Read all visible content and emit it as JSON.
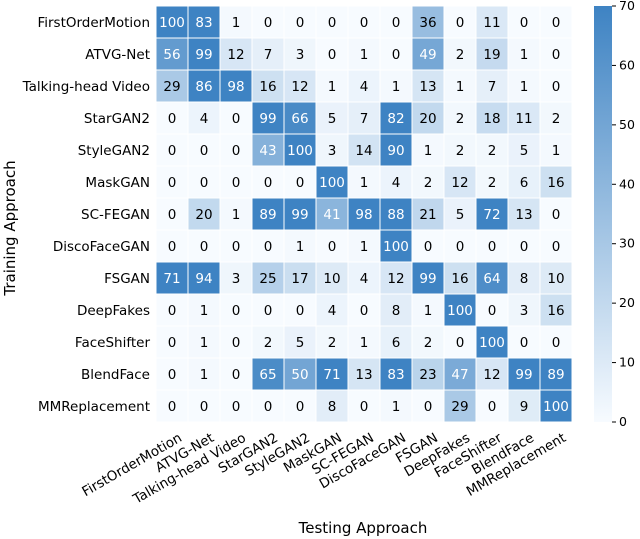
{
  "chart_data": {
    "type": "heatmap",
    "xlabel": "Testing Approach",
    "ylabel": "Training Approach",
    "x_categories": [
      "FirstOrderMotion",
      "ATVG-Net",
      "Talking-head Video",
      "StarGAN2",
      "StyleGAN2",
      "MaskGAN",
      "SC-FEGAN",
      "DiscoFaceGAN",
      "FSGAN",
      "DeepFakes",
      "FaceShifter",
      "BlendFace",
      "MMReplacement"
    ],
    "y_categories": [
      "FirstOrderMotion",
      "ATVG-Net",
      "Talking-head Video",
      "StarGAN2",
      "StyleGAN2",
      "MaskGAN",
      "SC-FEGAN",
      "DiscoFaceGAN",
      "FSGAN",
      "DeepFakes",
      "FaceShifter",
      "BlendFace",
      "MMReplacement"
    ],
    "values": [
      [
        100,
        83,
        1,
        0,
        0,
        0,
        0,
        0,
        36,
        0,
        11,
        0,
        0
      ],
      [
        56,
        99,
        12,
        7,
        3,
        0,
        1,
        0,
        49,
        2,
        19,
        1,
        0
      ],
      [
        29,
        86,
        98,
        16,
        12,
        1,
        4,
        1,
        13,
        1,
        7,
        1,
        0
      ],
      [
        0,
        4,
        0,
        99,
        66,
        5,
        7,
        82,
        20,
        2,
        18,
        11,
        2
      ],
      [
        0,
        0,
        0,
        43,
        100,
        3,
        14,
        90,
        1,
        2,
        2,
        5,
        1
      ],
      [
        0,
        0,
        0,
        0,
        0,
        100,
        1,
        4,
        2,
        12,
        2,
        6,
        16
      ],
      [
        0,
        20,
        1,
        89,
        99,
        41,
        98,
        88,
        21,
        5,
        72,
        13,
        0
      ],
      [
        0,
        0,
        0,
        0,
        1,
        0,
        1,
        100,
        0,
        0,
        0,
        0,
        0
      ],
      [
        71,
        94,
        3,
        25,
        17,
        10,
        4,
        12,
        99,
        16,
        64,
        8,
        10
      ],
      [
        0,
        1,
        0,
        0,
        0,
        4,
        0,
        8,
        1,
        100,
        0,
        3,
        16
      ],
      [
        0,
        1,
        0,
        2,
        5,
        2,
        1,
        6,
        2,
        0,
        100,
        0,
        0
      ],
      [
        0,
        1,
        0,
        65,
        50,
        71,
        13,
        83,
        23,
        47,
        12,
        99,
        89
      ],
      [
        0,
        0,
        0,
        0,
        0,
        8,
        0,
        1,
        0,
        29,
        0,
        9,
        100
      ]
    ],
    "color_range": [
      0,
      70
    ],
    "colorbar_ticks": [
      0,
      10,
      20,
      30,
      40,
      50,
      60,
      70
    ],
    "colors": {
      "low": "#f7fbff",
      "high": "#3e83c3",
      "cell_border": "#ffffff",
      "text_dark": "#000000",
      "text_light": "#ffffff"
    }
  }
}
